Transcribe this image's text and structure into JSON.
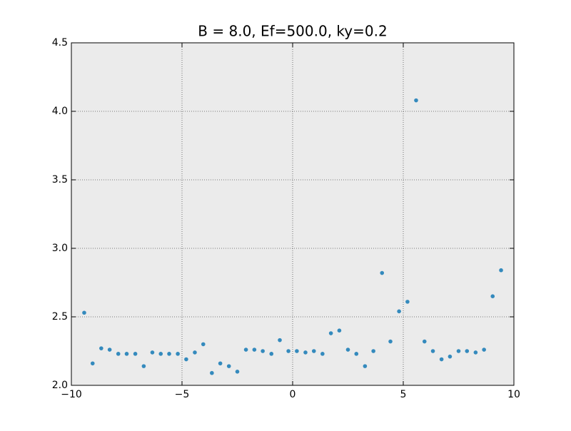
{
  "chart_data": {
    "type": "scatter",
    "title": "B = 8.0, Ef=500.0, ky=0.2",
    "x": [
      -9.42,
      -9.04,
      -8.65,
      -8.27,
      -7.88,
      -7.5,
      -7.11,
      -6.73,
      -6.34,
      -5.96,
      -5.58,
      -5.19,
      -4.81,
      -4.42,
      -4.04,
      -3.65,
      -3.27,
      -2.88,
      -2.5,
      -2.11,
      -1.73,
      -1.35,
      -0.96,
      -0.58,
      -0.19,
      0.19,
      0.58,
      0.96,
      1.35,
      1.73,
      2.11,
      2.5,
      2.88,
      3.27,
      3.65,
      4.04,
      4.42,
      4.81,
      5.19,
      5.58,
      5.96,
      6.34,
      6.73,
      7.11,
      7.5,
      7.88,
      8.27,
      8.65,
      9.04,
      9.42
    ],
    "series": [
      {
        "color": "#348abd",
        "values": [
          2.53,
          2.16,
          2.27,
          2.26,
          2.23,
          2.23,
          2.23,
          2.14,
          2.24,
          2.23,
          2.23,
          2.23,
          2.19,
          2.24,
          2.3,
          2.09,
          2.16,
          2.14,
          2.1,
          2.26,
          2.26,
          2.25,
          2.23,
          2.33,
          2.25,
          2.25,
          2.24,
          2.25,
          2.23,
          2.38,
          2.4,
          2.26,
          2.23,
          2.14,
          2.25,
          2.82,
          2.32,
          2.54,
          2.61,
          4.08,
          2.32,
          2.25,
          2.19,
          2.21,
          2.25,
          2.25,
          2.24,
          2.26,
          2.65,
          2.84
        ]
      }
    ],
    "xlim": [
      -10,
      10
    ],
    "xticks": [
      {
        "value": -10,
        "label": "−10"
      },
      {
        "value": -5,
        "label": "−5"
      },
      0,
      5,
      10
    ],
    "ylim": [
      2.0,
      4.5
    ],
    "yticks": [
      {
        "value": 2.0,
        "label": "2.0"
      },
      2.5,
      {
        "value": 3.0,
        "label": "3.0"
      },
      3.5,
      {
        "value": 4.0,
        "label": "4.0"
      },
      4.5
    ],
    "grid": true
  }
}
